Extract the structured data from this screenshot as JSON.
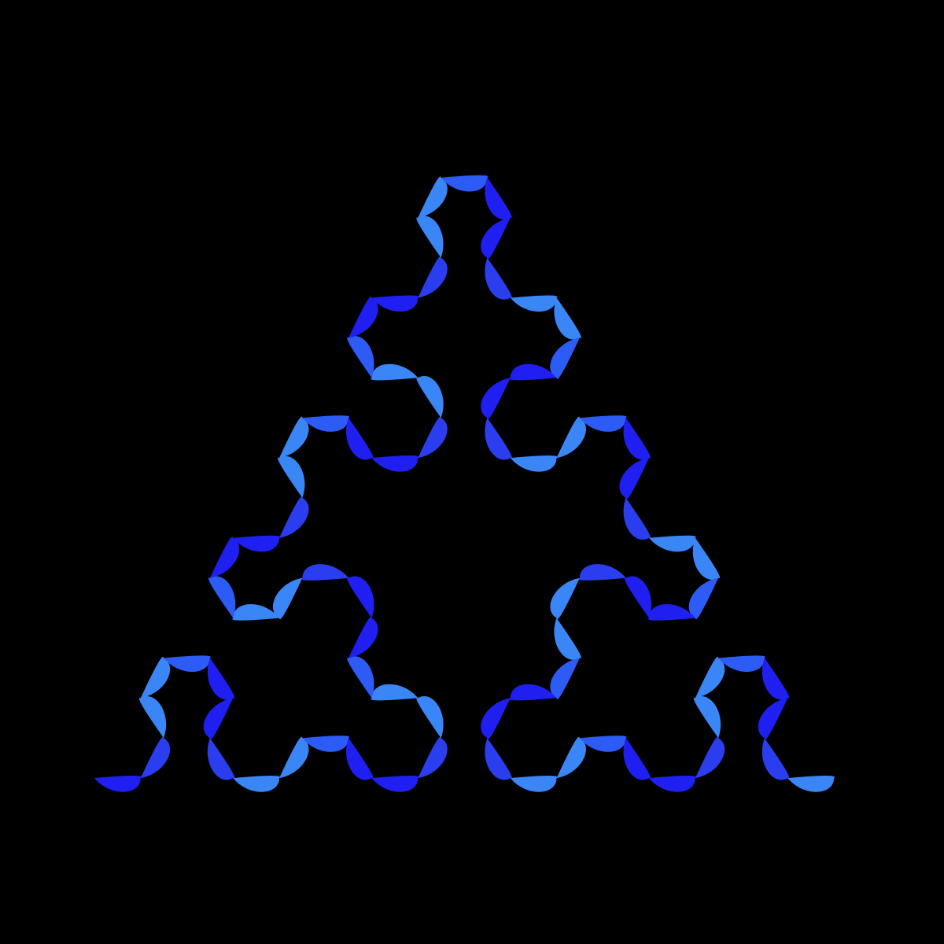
{
  "artwork": {
    "kind": "Sierpinski arrowhead curve rendered as teardrop/petal segments",
    "background_color": "#000000",
    "palette": [
      "#1f1ff2",
      "#2d5bf6",
      "#3a86f7",
      "#2a3ef0"
    ],
    "recursion_order": 4,
    "overall_shape": "equilateral triangle, apex at top"
  }
}
